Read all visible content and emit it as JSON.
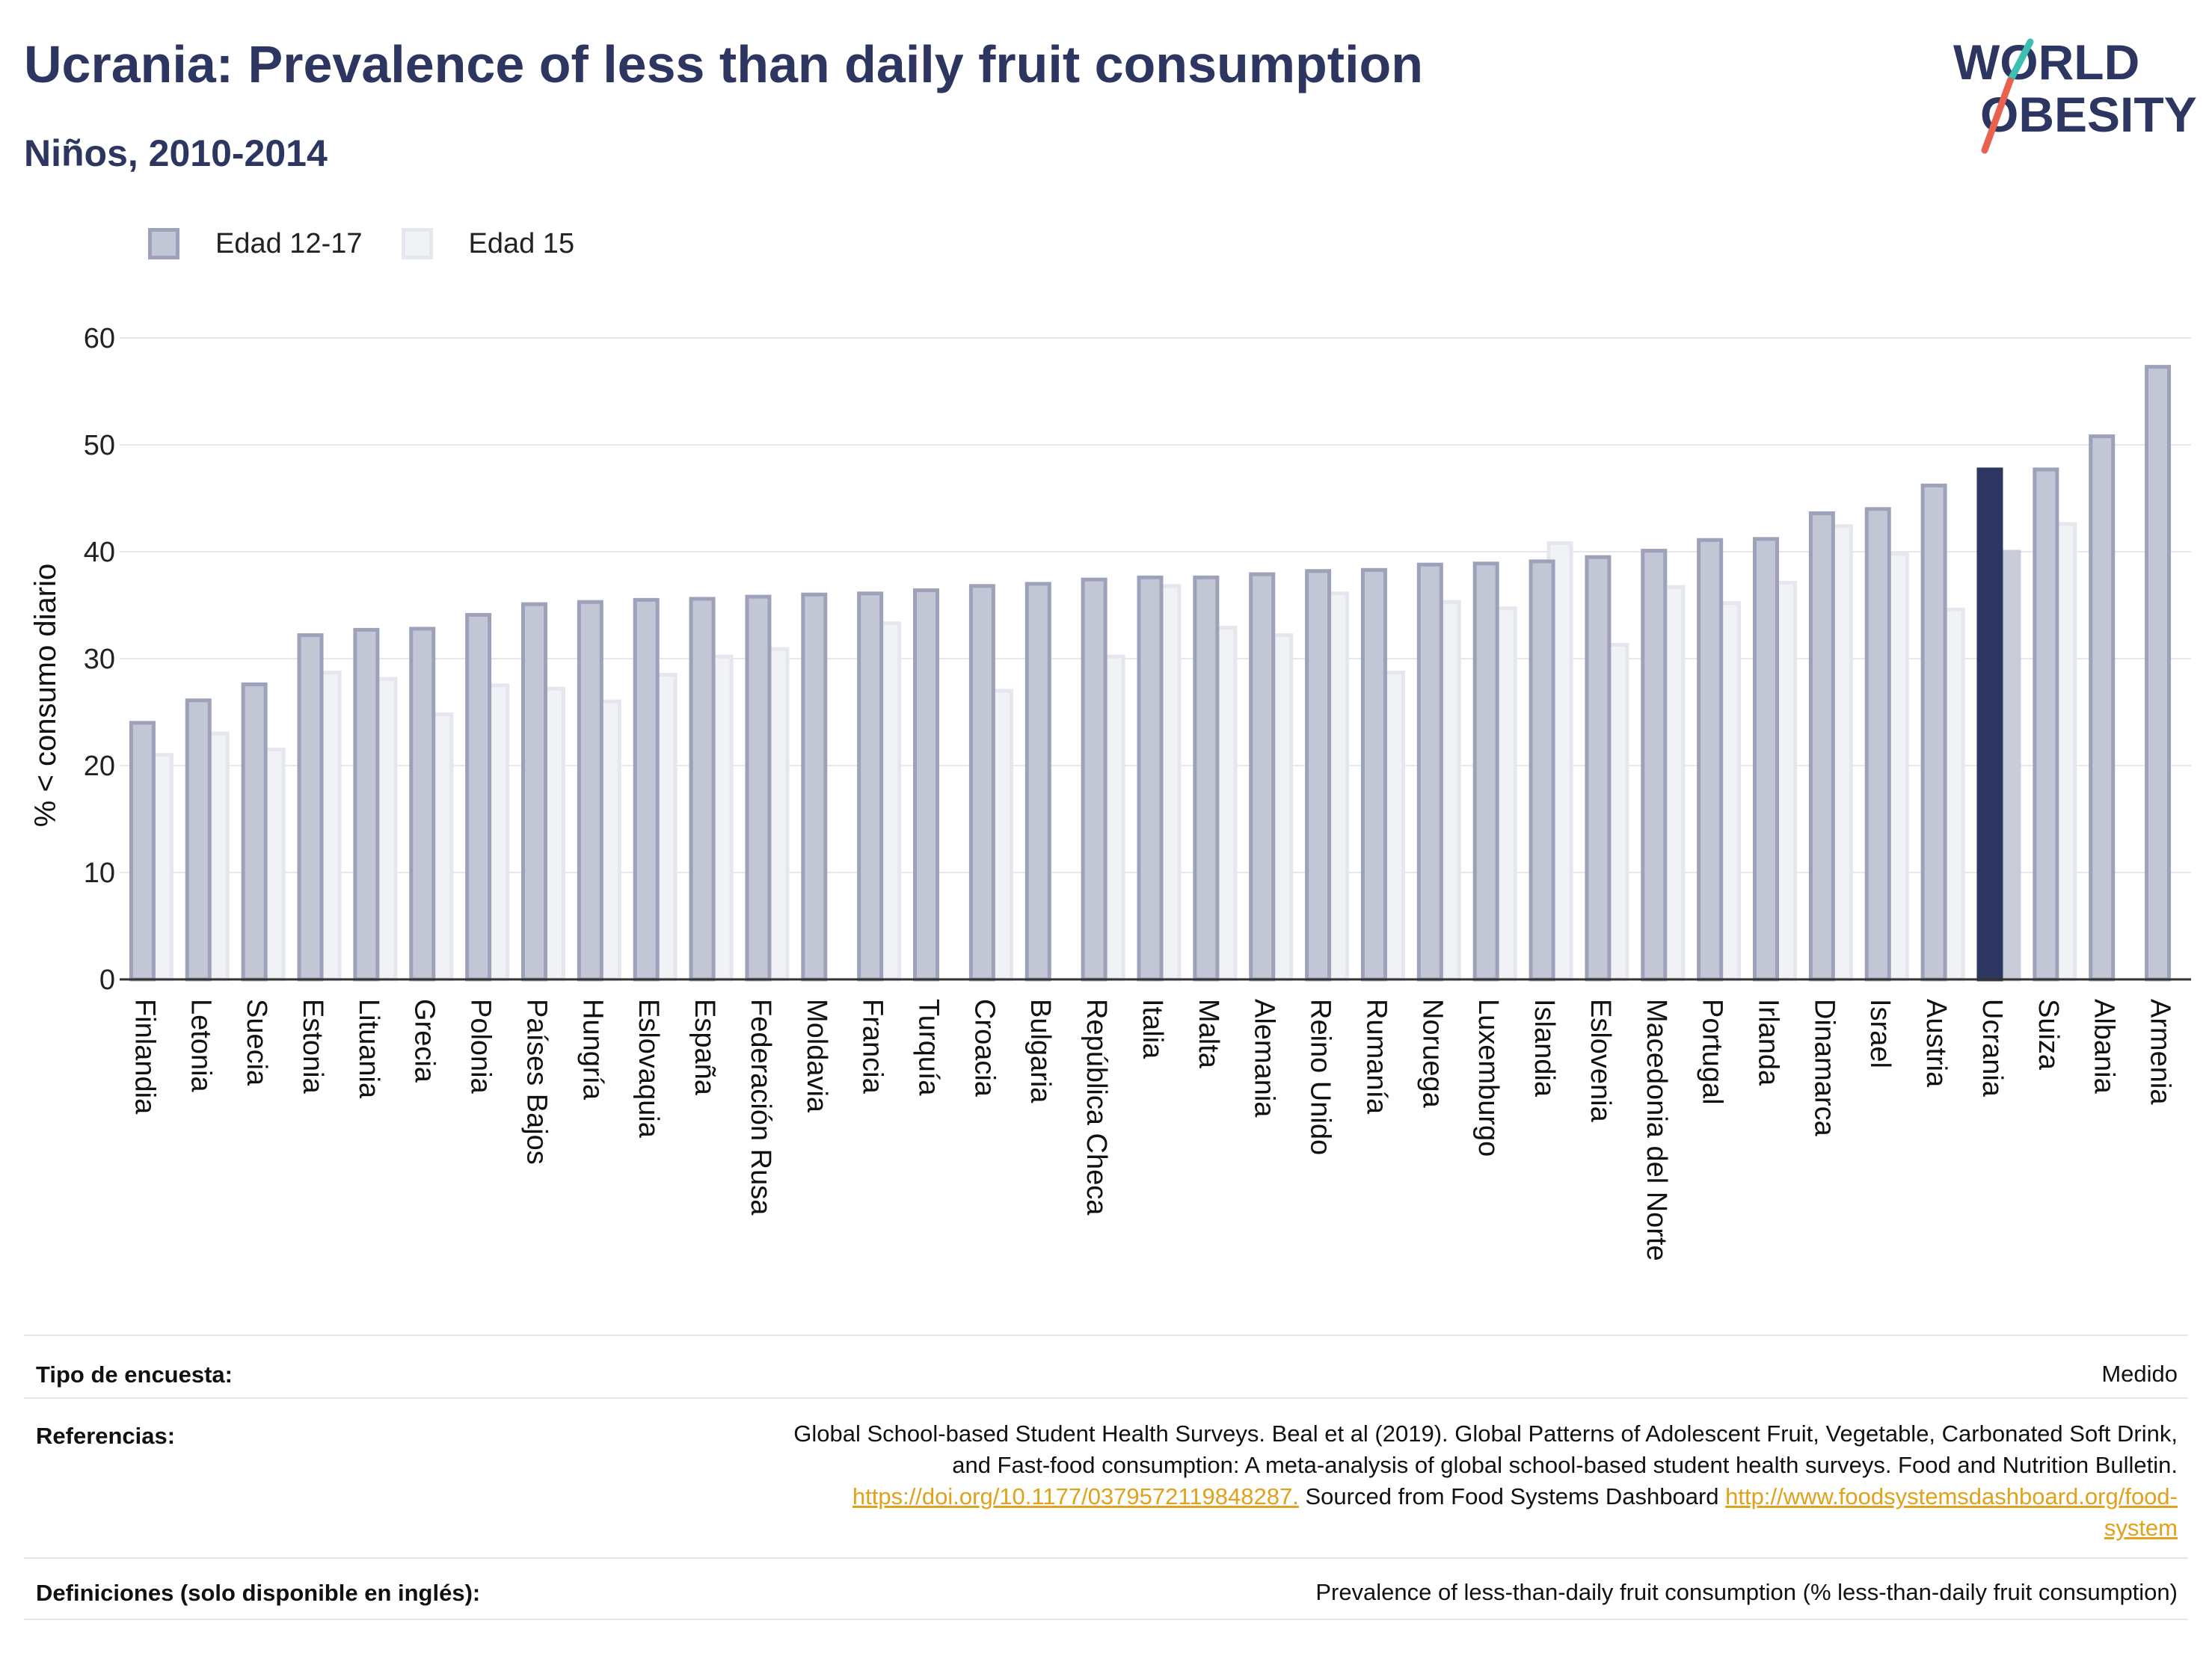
{
  "title": "Ucrania: Prevalence of less than daily fruit consumption",
  "subtitle": "Niños, 2010-2014",
  "logo": {
    "line1": "WORLD",
    "line2": "OBESITY"
  },
  "colors": {
    "series1_fill": "#c3c6d5",
    "series1_stroke": "#9da2ba",
    "series2_fill": "#f1f2f6",
    "series2_stroke": "#e5e7ee",
    "highlight1": "#2d3660",
    "highlight2": "#c9ccd9",
    "title": "#2d3660",
    "logo_slash_red": "#e8624f",
    "logo_slash_teal": "#3fbfb2"
  },
  "chart_data": {
    "type": "bar",
    "ylabel": "% < consumo diario",
    "xlabel": "",
    "ylim": [
      0,
      60
    ],
    "yticks": [
      0,
      10,
      20,
      30,
      40,
      50,
      60
    ],
    "grid": true,
    "legend_position": "top-left",
    "highlight_category": "Ucrania",
    "categories": [
      "Finlandia",
      "Letonia",
      "Suecia",
      "Estonia",
      "Lituania",
      "Grecia",
      "Polonia",
      "Países Bajos",
      "Hungría",
      "Eslovaquia",
      "España",
      "Federación Rusa",
      "Moldavia",
      "Francia",
      "Turquía",
      "Croacia",
      "Bulgaria",
      "República Checa",
      "Italia",
      "Malta",
      "Alemania",
      "Reino Unido",
      "Rumanía",
      "Noruega",
      "Luxemburgo",
      "Islandia",
      "Eslovenia",
      "Macedonia del Norte",
      "Portugal",
      "Irlanda",
      "Dinamarca",
      "Israel",
      "Austria",
      "Ucrania",
      "Suiza",
      "Albania",
      "Armenia"
    ],
    "series": [
      {
        "name": "Edad 12-17",
        "values": [
          24.0,
          26.1,
          27.6,
          32.2,
          32.7,
          32.8,
          34.1,
          35.1,
          35.3,
          35.5,
          35.6,
          35.8,
          36.0,
          36.1,
          36.4,
          36.8,
          37.0,
          37.4,
          37.6,
          37.6,
          37.9,
          38.2,
          38.3,
          38.8,
          38.9,
          39.1,
          39.5,
          40.1,
          41.1,
          41.2,
          43.6,
          44.0,
          46.2,
          47.7,
          47.7,
          50.8,
          57.3
        ]
      },
      {
        "name": "Edad 15",
        "values": [
          21.0,
          23.0,
          21.5,
          28.7,
          28.1,
          24.8,
          27.5,
          27.2,
          26.0,
          28.5,
          30.2,
          30.9,
          null,
          33.3,
          null,
          27.0,
          null,
          30.2,
          36.8,
          32.9,
          32.2,
          36.1,
          28.7,
          35.3,
          34.7,
          40.8,
          31.3,
          36.7,
          35.2,
          37.1,
          42.4,
          39.8,
          34.6,
          40.0,
          42.6,
          null,
          null
        ]
      }
    ]
  },
  "info": {
    "survey_label": "Tipo de encuesta:",
    "survey_value": "Medido",
    "refs_label": "Referencias:",
    "refs_line1": "Global School-based Student Health Surveys. Beal et al (2019). Global Patterns of Adolescent Fruit, Vegetable, Carbonated Soft Drink,",
    "refs_line2": "and Fast-food consumption: A meta-analysis of global school-based student health surveys. Food and Nutrition Bulletin.",
    "refs_link1": "https://doi.org/10.1177/0379572119848287.",
    "refs_mid": " Sourced from Food Systems Dashboard ",
    "refs_link2a": "http://www.foodsystemsdashboard.org/food-",
    "refs_link2b": "system",
    "defs_label": "Definiciones (solo disponible en inglés):",
    "defs_value": "Prevalence of less-than-daily fruit consumption (% less-than-daily fruit consumption)"
  }
}
